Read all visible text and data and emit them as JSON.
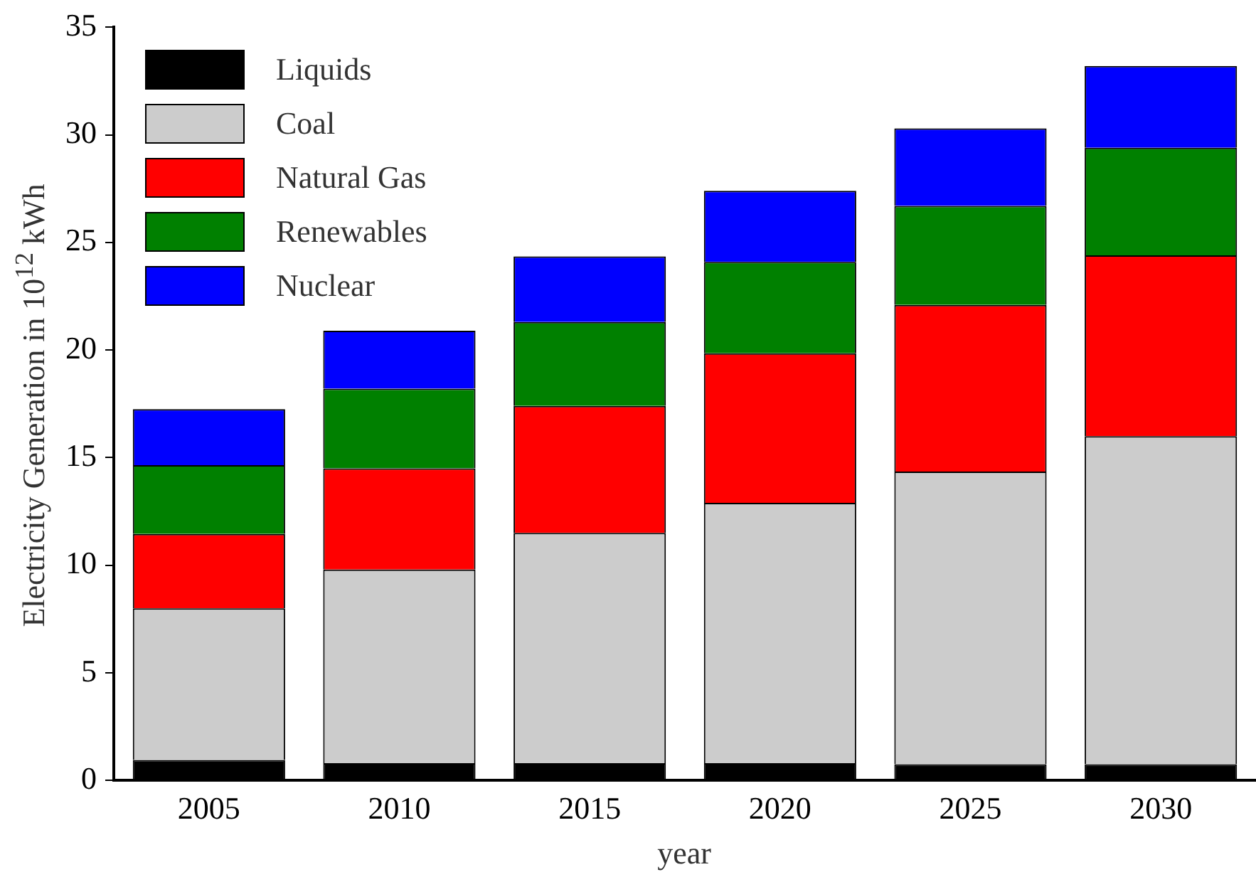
{
  "chart_data": {
    "type": "bar",
    "stacked": true,
    "xlabel": "year",
    "ylabel": "Electricity Generation in 10$^{12}$ kWh",
    "categories": [
      "2005",
      "2010",
      "2015",
      "2020",
      "2025",
      "2030"
    ],
    "series": [
      {
        "name": "Liquids",
        "color": "#000000",
        "values": [
          0.95,
          0.8,
          0.8,
          0.8,
          0.75,
          0.75
        ]
      },
      {
        "name": "Coal",
        "color": "#cccccc",
        "values": [
          7.05,
          9.0,
          10.7,
          12.1,
          13.6,
          15.25
        ]
      },
      {
        "name": "Natural Gas",
        "color": "#ff0000",
        "values": [
          3.45,
          4.7,
          5.9,
          6.95,
          7.75,
          8.4
        ]
      },
      {
        "name": "Renewables",
        "color": "#008000",
        "values": [
          3.2,
          3.7,
          3.9,
          4.25,
          4.6,
          5.0
        ]
      },
      {
        "name": "Nuclear",
        "color": "#0000ff",
        "values": [
          2.6,
          2.7,
          3.05,
          3.3,
          3.6,
          3.8
        ]
      }
    ],
    "ylim": [
      0,
      35
    ],
    "yticks": [
      0,
      5,
      10,
      15,
      20,
      25,
      30,
      35
    ],
    "grid": false,
    "legend": "top left"
  }
}
